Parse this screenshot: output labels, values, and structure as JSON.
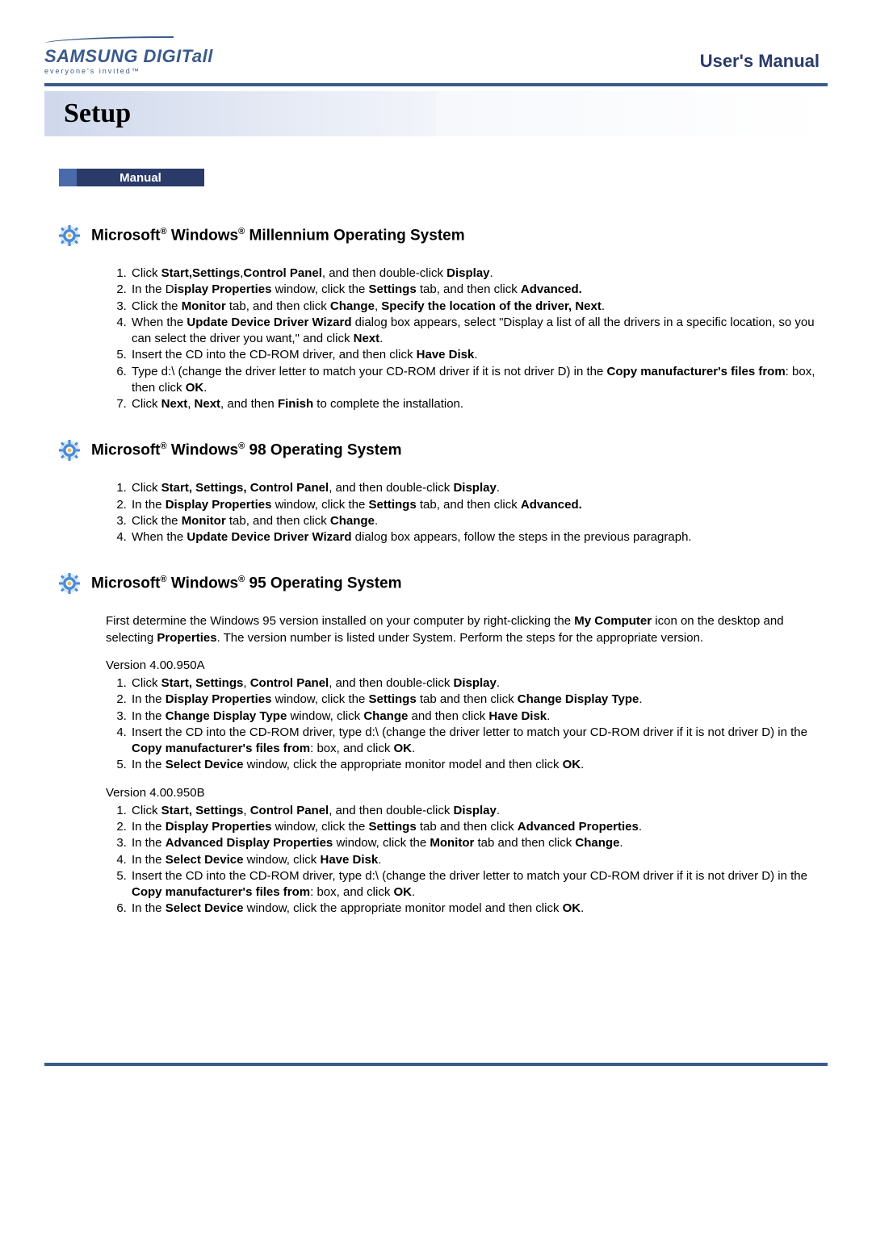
{
  "logo": {
    "brand_main": "SAMSUNG DIGIT",
    "brand_suffix": "all",
    "tagline": "everyone's invited™",
    "brand_color": "#3a5a8a"
  },
  "header": {
    "manual_title": "User's Manual"
  },
  "setup_bar": {
    "title": "Setup",
    "left_bg_start": "#cfd8ec",
    "left_bg_end": "#f2f4fa"
  },
  "tab": {
    "label": "Manual",
    "bg": "#2a3b6a",
    "edge": "#4a6baa",
    "text_color": "#ffffff"
  },
  "sections": [
    {
      "title_html": "Microsoft<sup>®</sup> Windows<sup>®</sup> Millennium Operating System",
      "steps": [
        "Click <b>Start,Settings</b>,<b>Control Panel</b>, and then double-click <b>Display</b>.",
        "In the D<b>isplay Properties</b> window, click the <b>Settings</b> tab, and then click <b>Advanced.</b>",
        "Click the <b>Monitor</b> tab, and then click <b>Change</b>, <b>Specify the location of the driver, Next</b>.",
        "When the <b>Update Device Driver Wizard</b> dialog box appears, select \"Display a list of all the drivers in a specific location, so you can select the driver you want,\" and click <b>Next</b>.",
        "Insert the CD into the CD-ROM driver, and then click <b>Have Disk</b>.",
        "Type d:\\ (change the driver letter to match your CD-ROM driver if it is not driver D) in the <b>Copy manufacturer's files from</b>: box, then click <b>OK</b>.",
        "Click <b>Next</b>, <b>Next</b>, and then <b>Finish</b> to complete the installation."
      ]
    },
    {
      "title_html": "Microsoft<sup>®</sup> Windows<sup>®</sup> 98 Operating System",
      "steps": [
        "Click <b>Start, Settings, Control Panel</b>, and then double-click <b>Display</b>.",
        "In the <b>Display Properties</b> window, click the <b>Settings</b> tab, and then click <b>Advanced.</b>",
        "Click the <b>Monitor</b> tab, and then click <b>Change</b>.",
        "When the <b>Update Device Driver Wizard</b> dialog box appears, follow the steps in the previous paragraph."
      ]
    },
    {
      "title_html": "Microsoft<sup>®</sup> Windows<sup>®</sup> 95 Operating System",
      "intro_html": "First determine the Windows 95 version installed on your computer by right-clicking the <b>My Computer</b> icon on the desktop and selecting <b>Properties</b>. The version number is listed under System. Perform the steps for the appropriate version.",
      "subsections": [
        {
          "version_label": "Version 4.00.950A",
          "steps": [
            "Click <b>Start, Settings</b>, <b>Control Panel</b>, and then double-click <b>Display</b>.",
            "In the <b>Display Properties</b> window, click the <b>Settings</b> tab and then click <b>Change Display Type</b>.",
            "In the <b>Change Display Type</b> window, click <b>Change</b> and then click <b>Have Disk</b>.",
            "Insert the CD into the CD-ROM driver, type d:\\ (change the driver letter to match your CD-ROM driver if it is not driver D) in the <b>Copy manufacturer's files from</b>: box, and click <b>OK</b>.",
            "In the <b>Select Device</b> window, click the appropriate monitor model and then click <b>OK</b>."
          ]
        },
        {
          "version_label": "Version 4.00.950B",
          "steps": [
            "Click <b>Start, Settings</b>, <b>Control Panel</b>, and then double-click <b>Display</b>.",
            "In the <b>Display Properties</b> window, click the <b>Settings</b> tab and then click <b>Advanced Properties</b>.",
            "In the <b>Advanced Display Properties</b> window, click the <b>Monitor</b> tab and then click <b>Change</b>.",
            "In the <b>Select Device</b> window, click <b>Have Disk</b>.",
            "Insert the CD into the CD-ROM driver, type d:\\ (change the driver letter to match your CD-ROM driver if it is not driver D) in the <b>Copy manufacturer's files from</b>: box, and click <b>OK</b>.",
            "In the <b>Select Device</b> window, click the appropriate monitor model and then click <b>OK</b>."
          ]
        }
      ]
    }
  ],
  "rule_color": "#3a5a8a",
  "gear_colors": {
    "outer": "#4a8bd8",
    "inner": "#a8c8ee",
    "center": "#ffffff",
    "glow": "#e0a020"
  }
}
